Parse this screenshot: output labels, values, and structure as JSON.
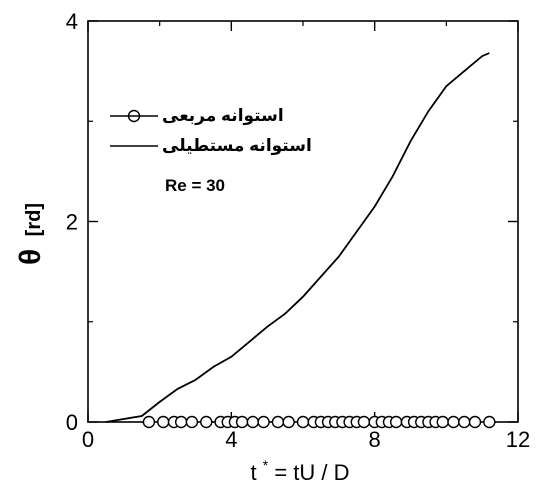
{
  "chart_data": {
    "type": "line",
    "title": "",
    "xlabel": {
      "prefix": "t",
      "superscript": "*",
      "rest": " = tU / D"
    },
    "ylabel": {
      "symbol": "θ",
      "unit": "[rd]"
    },
    "xlim": [
      0,
      12
    ],
    "ylim": [
      0,
      4
    ],
    "xticks": [
      0,
      4,
      8,
      12
    ],
    "yticks": [
      0,
      2,
      4
    ],
    "grid": false,
    "legend_position": "top-left",
    "annotation": "Re = 30",
    "series": [
      {
        "name": "استوانه مربعی",
        "style": "circle-markers",
        "x": [
          1.7,
          2.1,
          2.4,
          2.6,
          2.9,
          3.3,
          3.7,
          3.9,
          4.1,
          4.3,
          4.6,
          4.9,
          5.3,
          5.6,
          6.0,
          6.3,
          6.5,
          6.7,
          6.9,
          7.1,
          7.3,
          7.5,
          7.7,
          8.0,
          8.2,
          8.4,
          8.6,
          8.9,
          9.1,
          9.3,
          9.5,
          9.7,
          9.9,
          10.2,
          10.5,
          10.8,
          11.2
        ],
        "y": [
          0,
          0,
          0,
          0,
          0,
          0,
          0,
          0,
          0,
          0,
          0,
          0,
          0,
          0,
          0,
          0,
          0,
          0,
          0,
          0,
          0,
          0,
          0,
          0,
          0,
          0,
          0,
          0,
          0,
          0,
          0,
          0,
          0,
          0,
          0,
          0,
          0
        ]
      },
      {
        "name": "استوانه مستطیلی",
        "style": "solid-line",
        "x": [
          0.5,
          1.0,
          1.5,
          2.0,
          2.5,
          3.0,
          3.5,
          4.0,
          4.5,
          5.0,
          5.5,
          6.0,
          6.5,
          7.0,
          7.5,
          8.0,
          8.5,
          9.0,
          9.5,
          10.0,
          10.5,
          11.0,
          11.2
        ],
        "y": [
          0.0,
          0.03,
          0.06,
          0.2,
          0.33,
          0.42,
          0.55,
          0.65,
          0.8,
          0.95,
          1.08,
          1.25,
          1.45,
          1.65,
          1.9,
          2.15,
          2.45,
          2.8,
          3.1,
          3.35,
          3.5,
          3.65,
          3.68
        ]
      }
    ]
  }
}
